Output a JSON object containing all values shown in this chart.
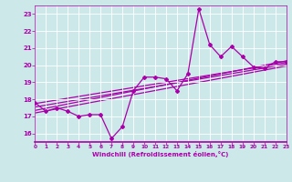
{
  "title": "",
  "xlabel": "Windchill (Refroidissement éolien,°C)",
  "xlim": [
    0,
    23
  ],
  "ylim": [
    15.5,
    23.5
  ],
  "yticks": [
    16,
    17,
    18,
    19,
    20,
    21,
    22,
    23
  ],
  "xticks": [
    0,
    1,
    2,
    3,
    4,
    5,
    6,
    7,
    8,
    9,
    10,
    11,
    12,
    13,
    14,
    15,
    16,
    17,
    18,
    19,
    20,
    21,
    22,
    23
  ],
  "bg_color": "#cce8e8",
  "line_color": "#aa00aa",
  "data_x": [
    0,
    1,
    2,
    3,
    4,
    5,
    6,
    7,
    8,
    9,
    10,
    11,
    12,
    13,
    14,
    15,
    16,
    17,
    18,
    19,
    20,
    21,
    22,
    23
  ],
  "data_y": [
    17.8,
    17.3,
    17.5,
    17.3,
    17.0,
    17.1,
    17.1,
    15.7,
    16.4,
    18.5,
    19.3,
    19.3,
    19.2,
    18.5,
    19.5,
    23.3,
    21.2,
    20.5,
    21.1,
    20.5,
    19.9,
    19.8,
    20.2,
    20.2
  ],
  "reg_lines": [
    {
      "x0": 0,
      "y0": 17.75,
      "x1": 23,
      "y1": 20.15
    },
    {
      "x0": 0,
      "y0": 17.55,
      "x1": 23,
      "y1": 20.05
    },
    {
      "x0": 0,
      "y0": 17.35,
      "x1": 23,
      "y1": 20.25
    },
    {
      "x0": 0,
      "y0": 17.2,
      "x1": 23,
      "y1": 19.95
    }
  ],
  "grid_color": "#b8d8d8",
  "tick_color": "#aa00aa",
  "xlabel_color": "#aa00aa"
}
